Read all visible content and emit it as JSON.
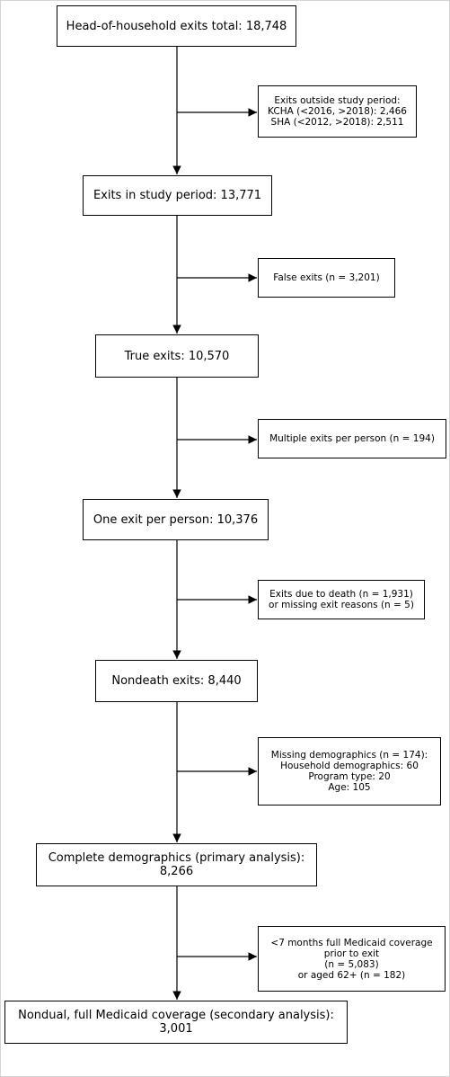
{
  "main_boxes": [
    {
      "lines": [
        "Head-of-household exits total: 18,748"
      ]
    },
    {
      "lines": [
        "Exits in study period: 13,771"
      ]
    },
    {
      "lines": [
        "True exits: 10,570"
      ]
    },
    {
      "lines": [
        "One exit per person: 10,376"
      ]
    },
    {
      "lines": [
        "Nondeath exits: 8,440"
      ]
    },
    {
      "lines": [
        "Complete demographics (primary analysis):",
        "8,266"
      ]
    },
    {
      "lines": [
        "Nondual, full Medicaid coverage (secondary analysis):",
        "3,001"
      ]
    }
  ],
  "exclusion_boxes": [
    {
      "lines": [
        "Exits outside study period:",
        "KCHA (<2016, >2018): 2,466",
        "SHA (<2012, >2018): 2,511"
      ]
    },
    {
      "lines": [
        "False exits (n = 3,201)"
      ]
    },
    {
      "lines": [
        "Multiple exits per person (n = 194)"
      ]
    },
    {
      "lines": [
        "Exits due to death (n = 1,931)",
        "or missing exit reasons (n = 5)"
      ]
    },
    {
      "lines": [
        "Missing demographics (n = 174):",
        "Household demographics: 60",
        "Program type: 20",
        "Age: 105"
      ]
    },
    {
      "lines": [
        "<7 months full Medicaid coverage",
        "prior to exit",
        "(n = 5,083)",
        "or aged 62+ (n = 182)"
      ]
    }
  ]
}
